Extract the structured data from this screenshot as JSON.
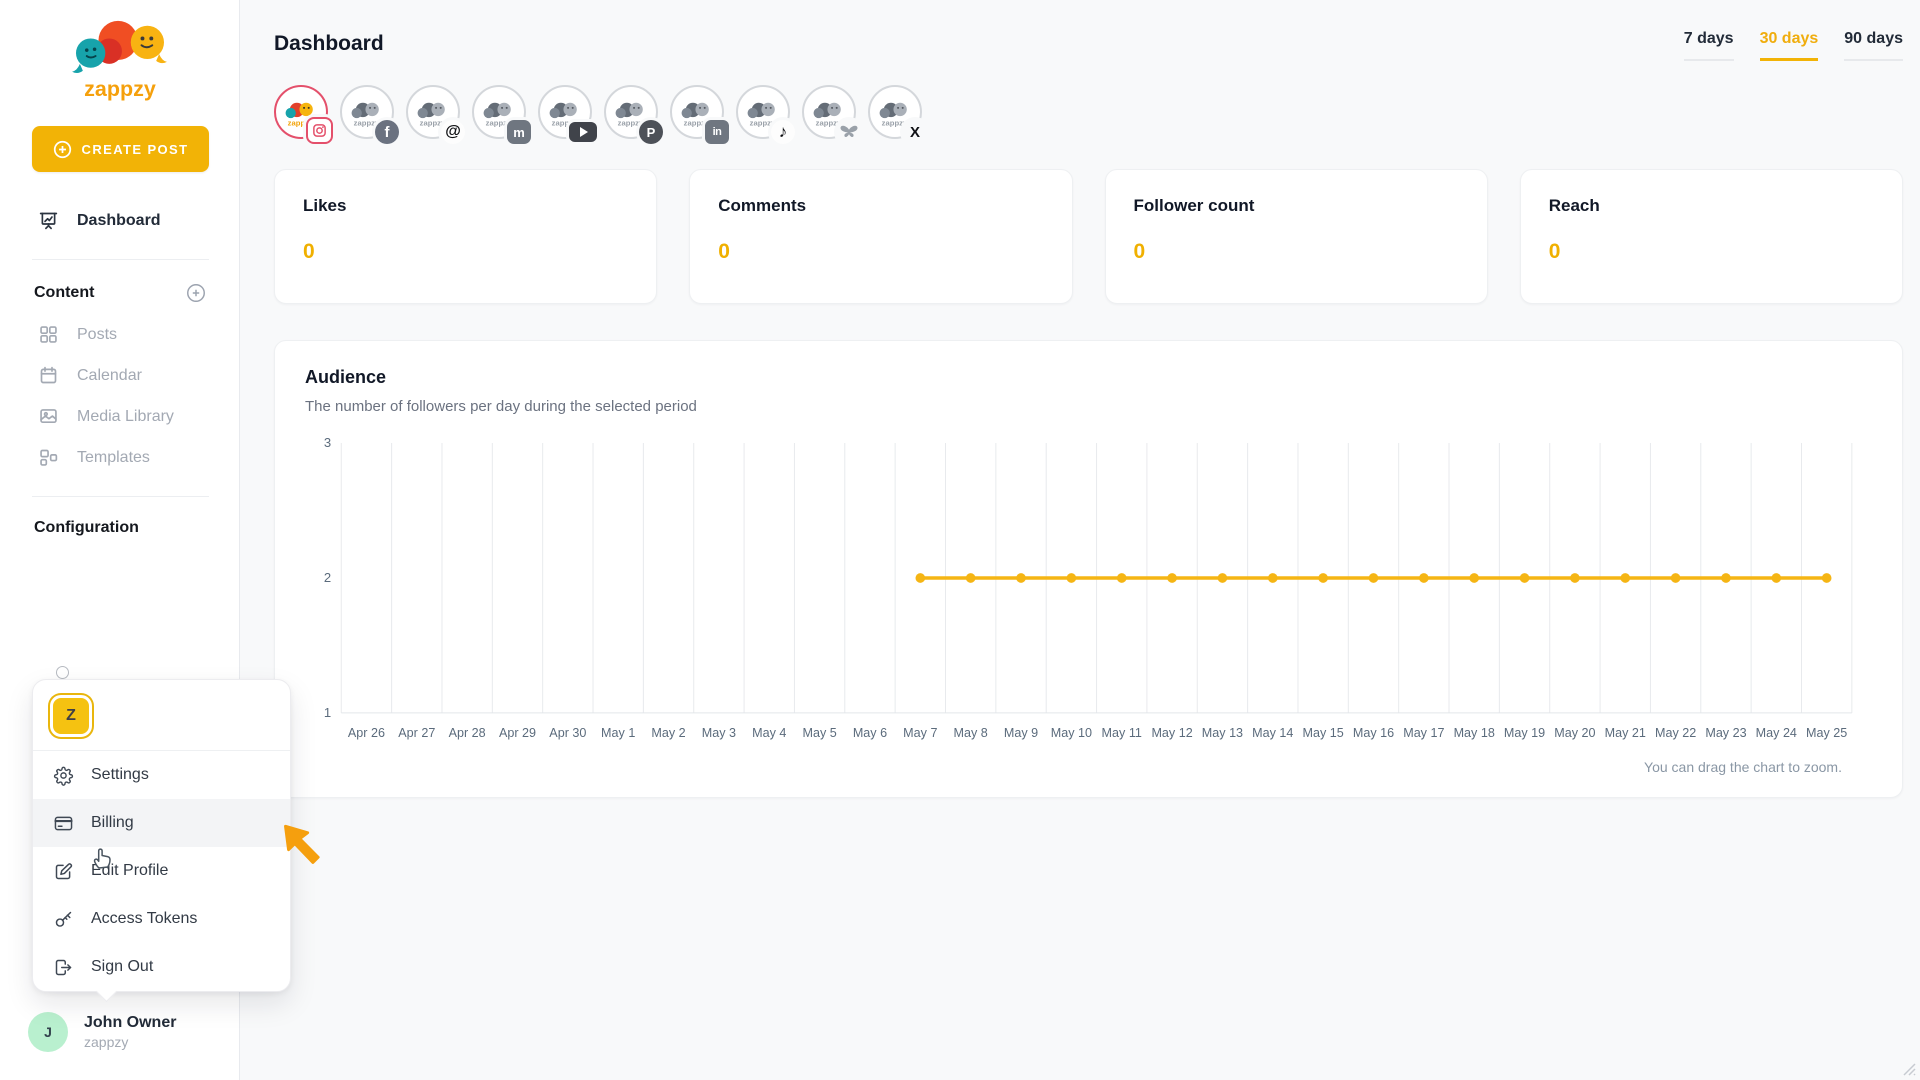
{
  "brand": {
    "name": "zappzy"
  },
  "sidebar": {
    "create_post": "CREATE POST",
    "dashboard": "Dashboard",
    "content_section": "Content",
    "content_items": [
      {
        "label": "Posts"
      },
      {
        "label": "Calendar"
      },
      {
        "label": "Media Library"
      },
      {
        "label": "Templates"
      }
    ],
    "configuration_section": "Configuration",
    "user": {
      "initial": "J",
      "name": "John Owner",
      "workspace": "zappzy"
    }
  },
  "user_menu": {
    "workspace_initial": "Z",
    "items": [
      {
        "label": "Settings"
      },
      {
        "label": "Billing",
        "highlighted": true
      },
      {
        "label": "Edit Profile"
      },
      {
        "label": "Access Tokens"
      },
      {
        "label": "Sign Out"
      }
    ]
  },
  "header": {
    "title": "Dashboard",
    "range_tabs": [
      {
        "label": "7 days",
        "selected": false
      },
      {
        "label": "30 days",
        "selected": true
      },
      {
        "label": "90 days",
        "selected": false
      }
    ]
  },
  "accounts": {
    "handle": "zappzy",
    "platforms": [
      {
        "name": "Instagram",
        "selected": true
      },
      {
        "name": "Facebook",
        "selected": false
      },
      {
        "name": "Threads",
        "selected": false
      },
      {
        "name": "Mastodon",
        "selected": false
      },
      {
        "name": "YouTube",
        "selected": false
      },
      {
        "name": "Pinterest",
        "selected": false
      },
      {
        "name": "LinkedIn",
        "selected": false
      },
      {
        "name": "TikTok",
        "selected": false
      },
      {
        "name": "Bluesky",
        "selected": false
      },
      {
        "name": "X",
        "selected": false
      }
    ]
  },
  "stats": [
    {
      "label": "Likes",
      "value": "0"
    },
    {
      "label": "Comments",
      "value": "0"
    },
    {
      "label": "Follower count",
      "value": "0"
    },
    {
      "label": "Reach",
      "value": "0"
    }
  ],
  "audience": {
    "title": "Audience",
    "subtitle": "The number of followers per day during the selected period",
    "zoom_hint": "You can drag the chart to zoom."
  },
  "chart_data": {
    "type": "line",
    "title": "Audience",
    "xlabel": "",
    "ylabel": "",
    "x": [
      "Apr 26",
      "Apr 27",
      "Apr 28",
      "Apr 29",
      "Apr 30",
      "May 1",
      "May 2",
      "May 3",
      "May 4",
      "May 5",
      "May 6",
      "May 7",
      "May 8",
      "May 9",
      "May 10",
      "May 11",
      "May 12",
      "May 13",
      "May 14",
      "May 15",
      "May 16",
      "May 17",
      "May 18",
      "May 19",
      "May 20",
      "May 21",
      "May 22",
      "May 23",
      "May 24",
      "May 25"
    ],
    "series": [
      {
        "name": "Followers",
        "values": [
          null,
          null,
          null,
          null,
          null,
          null,
          null,
          null,
          null,
          null,
          null,
          2,
          2,
          2,
          2,
          2,
          2,
          2,
          2,
          2,
          2,
          2,
          2,
          2,
          2,
          2,
          2,
          2,
          2,
          2
        ]
      }
    ],
    "ylim": [
      1,
      3
    ],
    "yticks": [
      1,
      2,
      3
    ],
    "grid": "vertical",
    "legend": "none",
    "line_color": "#f5b514"
  },
  "colors": {
    "accent": "#f2b306",
    "stat_value": "#f0b000",
    "selected_ring": "#e4506b",
    "chart_line": "#f5b514"
  }
}
